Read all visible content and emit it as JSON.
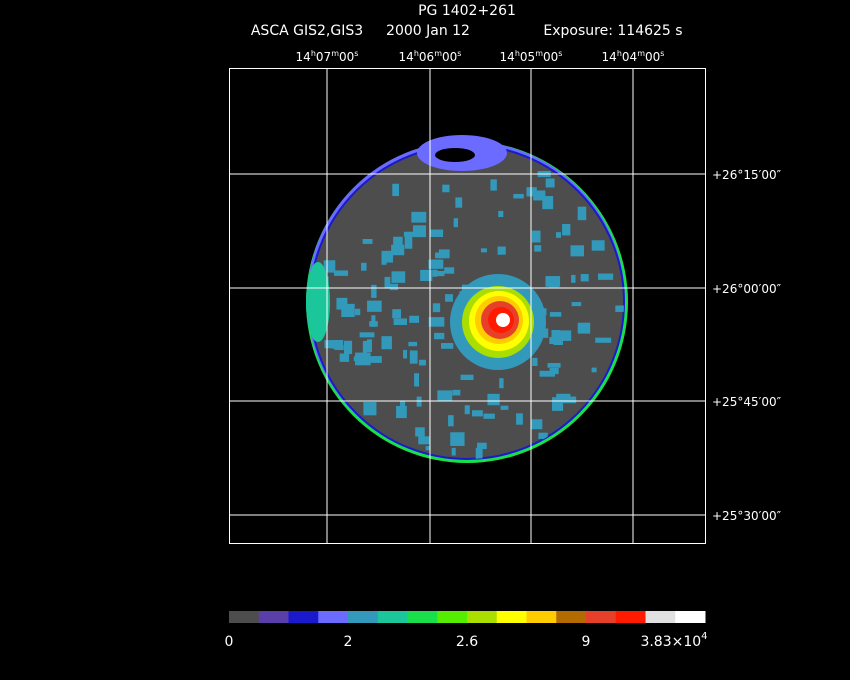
{
  "header": {
    "title": "PG 1402+261",
    "instrument": "ASCA GIS2,GIS3",
    "date": "2000 Jan 12",
    "exposure": "Exposure: 114625 s"
  },
  "ra_labels": [
    [
      "14",
      "h",
      "07",
      "m",
      "00",
      "s"
    ],
    [
      "14",
      "h",
      "06",
      "m",
      "00",
      "s"
    ],
    [
      "14",
      "h",
      "05",
      "m",
      "00",
      "s"
    ],
    [
      "14",
      "h",
      "04",
      "m",
      "00",
      "s"
    ]
  ],
  "dec_labels": [
    "+26°15′00″",
    "+26°00′00″",
    "+25°45′00″",
    "+25°30′00″"
  ],
  "colorbar": {
    "colors": [
      "#4d4d4d",
      "#5a3fa8",
      "#1a1acc",
      "#6b6bff",
      "#3399bb",
      "#1ac69a",
      "#19e04a",
      "#55ee00",
      "#aadd00",
      "#ffff00",
      "#ffcc00",
      "#b36b00",
      "#e6402a",
      "#ff1a00",
      "#e0e0e0",
      "#ffffff"
    ],
    "labels": [
      "0",
      "2",
      "2.6",
      "9"
    ],
    "max_label": [
      "3.83×10",
      "4"
    ]
  }
}
